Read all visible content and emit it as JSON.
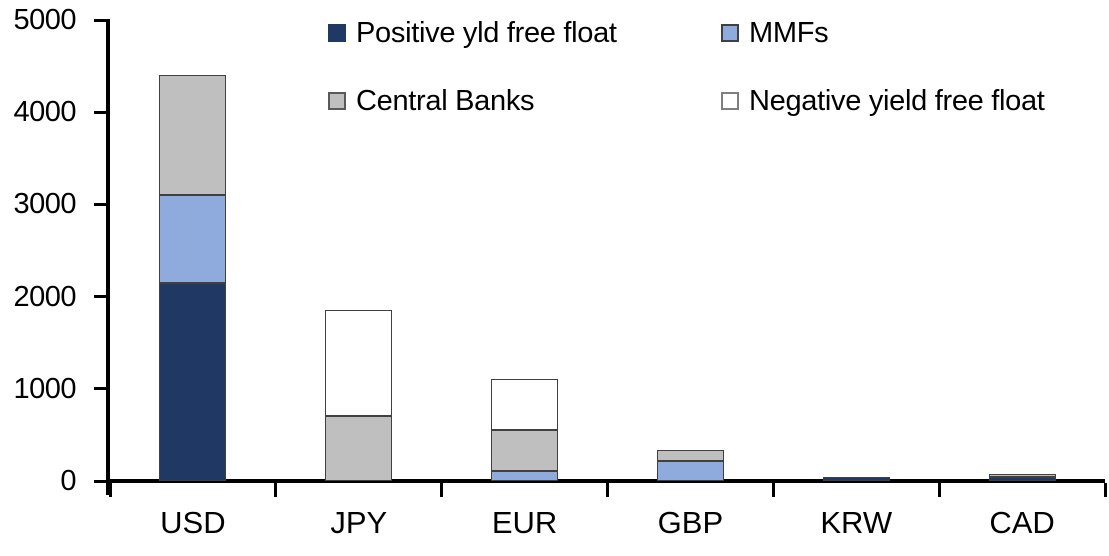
{
  "colors": {
    "axis": "#000000",
    "text": "#000000",
    "segment_border": "#404040",
    "background": "#ffffff"
  },
  "chart_data": {
    "type": "bar",
    "stacked": true,
    "title": "",
    "xlabel": "",
    "ylabel": "",
    "categories": [
      "USD",
      "JPY",
      "EUR",
      "GBP",
      "KRW",
      "CAD"
    ],
    "series": [
      {
        "name": "Positive yld free float",
        "color": "#1F3864",
        "swatch_border": "#1F3864",
        "values": [
          2150,
          0,
          0,
          0,
          40,
          40
        ]
      },
      {
        "name": "MMFs",
        "color": "#8FAADC",
        "swatch_border": "#404040",
        "values": [
          950,
          0,
          110,
          220,
          0,
          0
        ]
      },
      {
        "name": "Central Banks",
        "color": "#BFBFBF",
        "swatch_border": "#595959",
        "values": [
          1300,
          700,
          440,
          120,
          0,
          35
        ]
      },
      {
        "name": "Negative yield free float",
        "color": "#FFFFFF",
        "swatch_border": "#7F7F7F",
        "values": [
          0,
          1150,
          560,
          0,
          0,
          0
        ]
      }
    ],
    "ylim": [
      0,
      5000
    ],
    "yticks": [
      0,
      1000,
      2000,
      3000,
      4000,
      5000
    ],
    "grid": false,
    "legend_position": "top-two-column"
  }
}
